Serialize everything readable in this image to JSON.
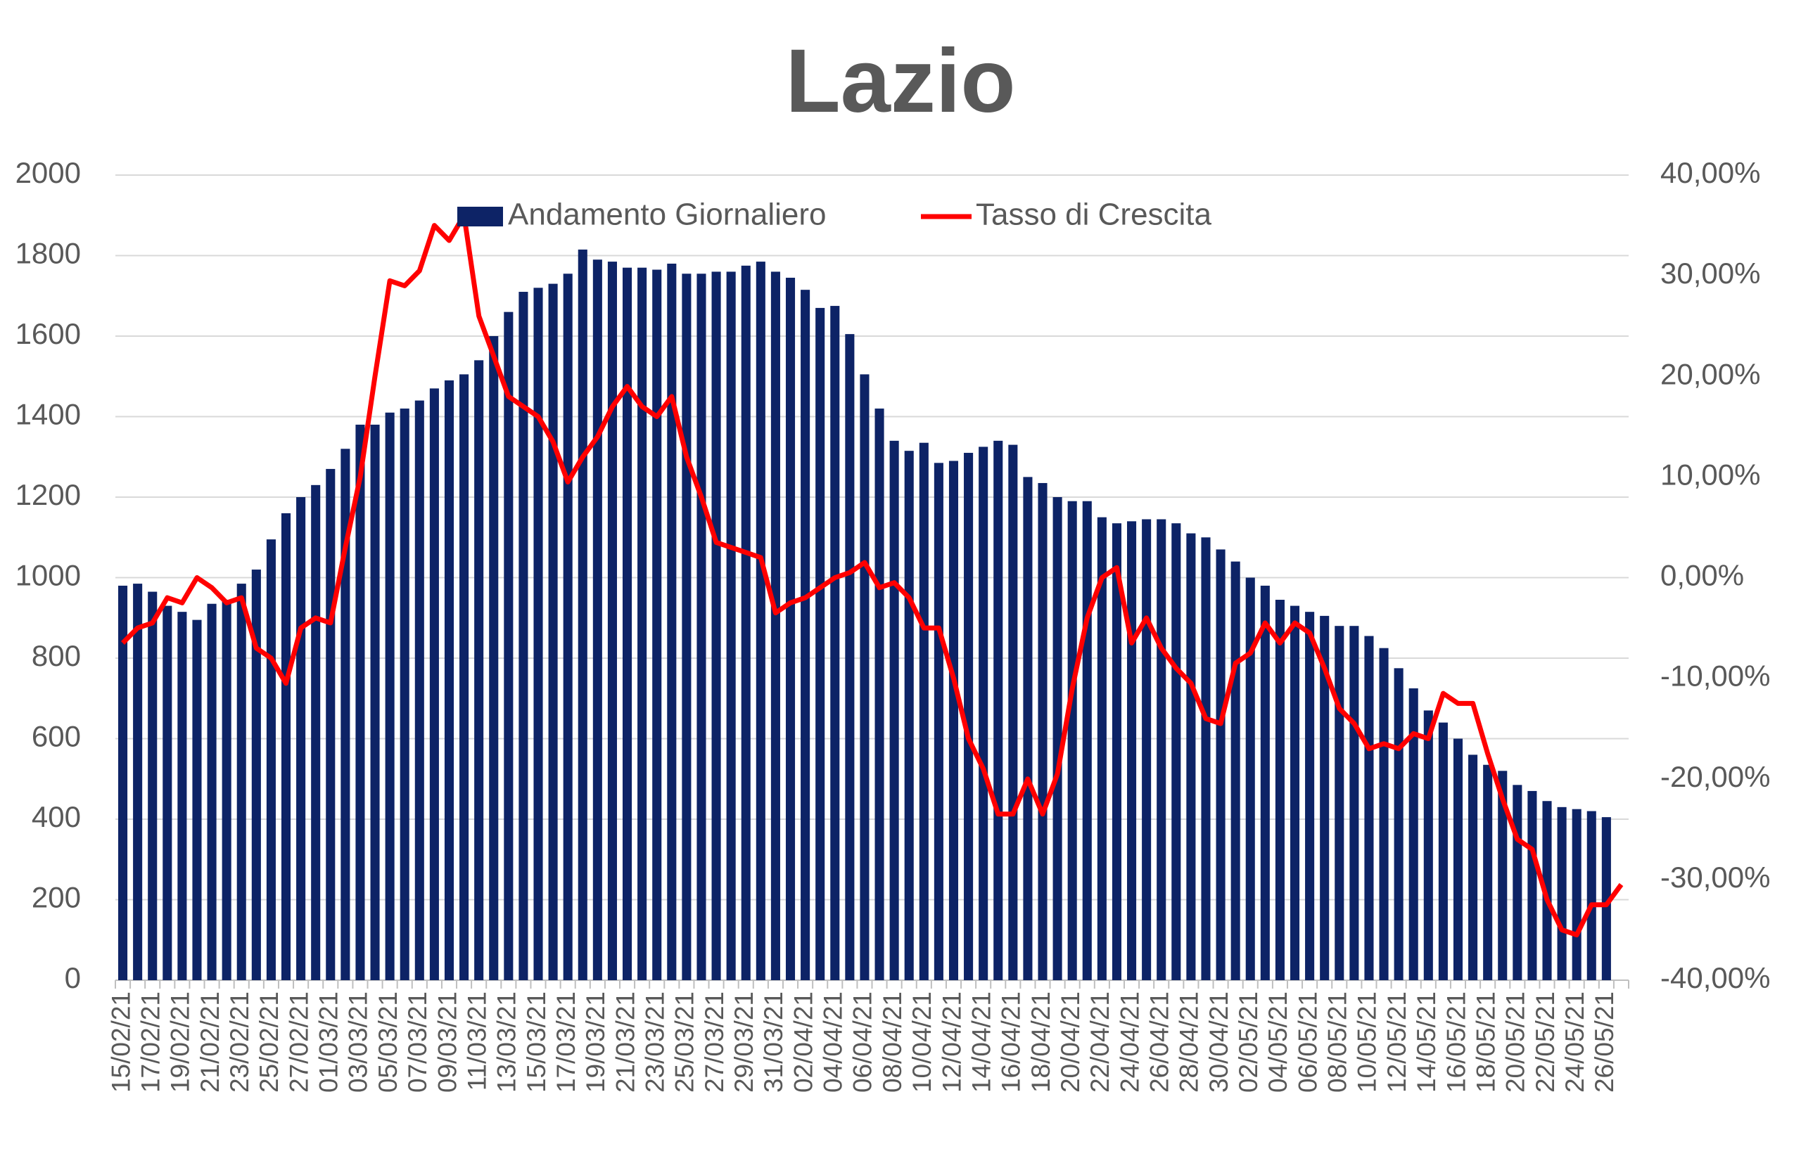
{
  "chart_data": {
    "type": "bar",
    "title": "Lazio",
    "categories": [
      "15/02/21",
      null,
      "17/02/21",
      null,
      "19/02/21",
      null,
      "21/02/21",
      null,
      "23/02/21",
      null,
      "25/02/21",
      null,
      "27/02/21",
      null,
      "01/03/21",
      null,
      "03/03/21",
      null,
      "05/03/21",
      null,
      "07/03/21",
      null,
      "09/03/21",
      null,
      "11/03/21",
      null,
      "13/03/21",
      null,
      "15/03/21",
      null,
      "17/03/21",
      null,
      "19/03/21",
      null,
      "21/03/21",
      null,
      "23/03/21",
      null,
      "25/03/21",
      null,
      "27/03/21",
      null,
      "29/03/21",
      null,
      "31/03/21",
      null,
      "02/04/21",
      null,
      "04/04/21",
      null,
      "06/04/21",
      null,
      "08/04/21",
      null,
      "10/04/21",
      null,
      "12/04/21",
      null,
      "14/04/21",
      null,
      "16/04/21",
      null,
      "18/04/21",
      null,
      "20/04/21",
      null,
      "22/04/21",
      null,
      "24/04/21",
      null,
      "26/04/21",
      null,
      "28/04/21",
      null,
      "30/04/21",
      null,
      "02/05/21",
      null,
      "04/05/21",
      null,
      "06/05/21",
      null,
      "08/05/21",
      null,
      "10/05/21",
      null,
      "12/05/21",
      null,
      "14/05/21",
      null,
      "16/05/21",
      null,
      "18/05/21",
      null,
      "20/05/21",
      null,
      "22/05/21",
      null,
      "24/05/21",
      null,
      "26/05/21",
      null
    ],
    "series": [
      {
        "name": "Andamento Giornaliero",
        "type": "bar",
        "color": "#0d2366",
        "values": [
          980,
          985,
          965,
          930,
          915,
          895,
          935,
          945,
          985,
          1020,
          1095,
          1160,
          1200,
          1230,
          1270,
          1320,
          1380,
          1380,
          1410,
          1420,
          1440,
          1470,
          1490,
          1505,
          1540,
          1600,
          1660,
          1710,
          1720,
          1730,
          1755,
          1815,
          1790,
          1785,
          1770,
          1770,
          1765,
          1780,
          1755,
          1755,
          1760,
          1760,
          1775,
          1785,
          1760,
          1745,
          1715,
          1670,
          1675,
          1605,
          1505,
          1420,
          1340,
          1315,
          1335,
          1285,
          1290,
          1310,
          1325,
          1340,
          1330,
          1250,
          1235,
          1200,
          1190,
          1190,
          1150,
          1135,
          1140,
          1145,
          1145,
          1135,
          1110,
          1100,
          1070,
          1040,
          1000,
          980,
          945,
          930,
          915,
          905,
          880,
          880,
          855,
          825,
          775,
          725,
          670,
          640,
          600,
          560,
          535,
          520,
          485,
          470,
          445,
          430,
          425,
          420,
          405,
          null
        ]
      },
      {
        "name": "Tasso di Crescita",
        "type": "line",
        "axis": "y2",
        "color": "#ff0000",
        "values": [
          -6.5,
          -5,
          -4.5,
          -2,
          -2.5,
          0,
          -1,
          -2.5,
          -2,
          -7,
          -8,
          -10.5,
          -5,
          -4,
          -4.5,
          3,
          10,
          20,
          29.5,
          29,
          30.5,
          35,
          33.5,
          36,
          26,
          22,
          18,
          17,
          16,
          13.5,
          9.5,
          12,
          14,
          17,
          19,
          17,
          16,
          18,
          12,
          8,
          3.5,
          3,
          2.5,
          2,
          -3.5,
          -2.5,
          -2,
          -1,
          0,
          0.5,
          1.5,
          -1,
          -0.5,
          -2,
          -5,
          -5,
          -10,
          -16,
          -19,
          -23.5,
          -23.5,
          -20,
          -23.5,
          -19.5,
          -11,
          -4,
          0,
          1,
          -6.5,
          -4,
          -7,
          -9,
          -10.5,
          -14,
          -14.5,
          -8.5,
          -7.5,
          -4.5,
          -6.5,
          -4.5,
          -5.5,
          -9,
          -13,
          -14.5,
          -17,
          -16.5,
          -17,
          -15.5,
          -16,
          -11.5,
          -12.5,
          -12.5,
          -17.5,
          -22,
          -26,
          -27,
          -32,
          -35,
          -35.5,
          -32.5,
          -32.5,
          -30.5
        ]
      }
    ],
    "ylim": [
      0,
      2000
    ],
    "yticks": [
      0,
      200,
      400,
      600,
      800,
      1000,
      1200,
      1400,
      1600,
      1800,
      2000
    ],
    "y2lim": [
      -40,
      40
    ],
    "y2ticks": [
      {
        "value": -40,
        "label": "-40,00%"
      },
      {
        "value": -30,
        "label": "-30,00%"
      },
      {
        "value": -20,
        "label": "-20,00%"
      },
      {
        "value": -10,
        "label": "-10,00%"
      },
      {
        "value": 0,
        "label": "0,00%"
      },
      {
        "value": 10,
        "label": "10,00%"
      },
      {
        "value": 20,
        "label": "20,00%"
      },
      {
        "value": 30,
        "label": "30,00%"
      },
      {
        "value": 40,
        "label": "40,00%"
      }
    ],
    "grid": true,
    "legend": "top"
  }
}
